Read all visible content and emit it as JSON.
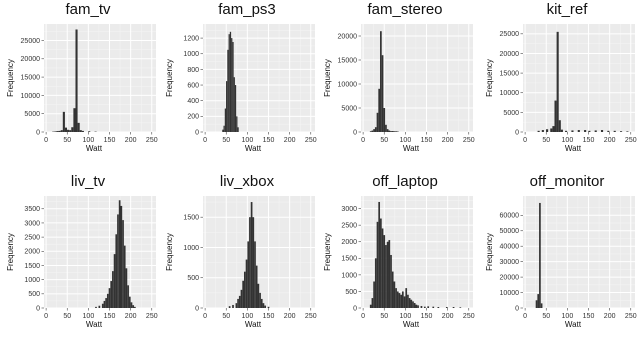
{
  "chart_data": [
    {
      "type": "bar",
      "title": "fam_tv",
      "xlabel": "Watt",
      "ylabel": "Frequency",
      "xlim": [
        -5,
        260
      ],
      "ylim": [
        0,
        29500
      ],
      "xticks": [
        0,
        50,
        100,
        150,
        200,
        250
      ],
      "yticks": [
        0,
        5000,
        10000,
        15000,
        20000,
        25000
      ],
      "binwidth": 5,
      "bins": [
        {
          "x": 17,
          "v": 100
        },
        {
          "x": 22,
          "v": 150
        },
        {
          "x": 27,
          "v": 250
        },
        {
          "x": 32,
          "v": 300
        },
        {
          "x": 37,
          "v": 500
        },
        {
          "x": 42,
          "v": 5500
        },
        {
          "x": 47,
          "v": 1200
        },
        {
          "x": 52,
          "v": 600
        },
        {
          "x": 57,
          "v": 500
        },
        {
          "x": 62,
          "v": 1300
        },
        {
          "x": 67,
          "v": 6500
        },
        {
          "x": 72,
          "v": 28000
        },
        {
          "x": 77,
          "v": 2500
        },
        {
          "x": 82,
          "v": 500
        },
        {
          "x": 87,
          "v": 300
        },
        {
          "x": 102,
          "v": 200
        },
        {
          "x": 117,
          "v": 100
        }
      ]
    },
    {
      "type": "bar",
      "title": "fam_ps3",
      "xlabel": "Watt",
      "ylabel": "Frequency",
      "xlim": [
        -5,
        260
      ],
      "ylim": [
        0,
        1380
      ],
      "xticks": [
        0,
        50,
        100,
        150,
        200,
        250
      ],
      "yticks": [
        0,
        200,
        400,
        600,
        800,
        1000,
        1200
      ],
      "binwidth": 3,
      "bins": [
        {
          "x": 42,
          "v": 30
        },
        {
          "x": 45,
          "v": 80
        },
        {
          "x": 48,
          "v": 300
        },
        {
          "x": 51,
          "v": 650
        },
        {
          "x": 54,
          "v": 1050
        },
        {
          "x": 57,
          "v": 1250
        },
        {
          "x": 60,
          "v": 1280
        },
        {
          "x": 63,
          "v": 1200
        },
        {
          "x": 66,
          "v": 1150
        },
        {
          "x": 69,
          "v": 700
        },
        {
          "x": 72,
          "v": 600
        },
        {
          "x": 75,
          "v": 200
        },
        {
          "x": 78,
          "v": 60
        }
      ]
    },
    {
      "type": "bar",
      "title": "fam_stereo",
      "xlabel": "Watt",
      "ylabel": "Frequency",
      "xlim": [
        -5,
        260
      ],
      "ylim": [
        0,
        22500
      ],
      "xticks": [
        0,
        50,
        100,
        150,
        200,
        250
      ],
      "yticks": [
        0,
        5000,
        10000,
        15000,
        20000
      ],
      "binwidth": 4,
      "bins": [
        {
          "x": 18,
          "v": 150
        },
        {
          "x": 22,
          "v": 300
        },
        {
          "x": 26,
          "v": 600
        },
        {
          "x": 30,
          "v": 1000
        },
        {
          "x": 34,
          "v": 4000
        },
        {
          "x": 38,
          "v": 9000
        },
        {
          "x": 42,
          "v": 21000
        },
        {
          "x": 46,
          "v": 16000
        },
        {
          "x": 50,
          "v": 5000
        },
        {
          "x": 54,
          "v": 1500
        },
        {
          "x": 58,
          "v": 600
        },
        {
          "x": 62,
          "v": 300
        },
        {
          "x": 66,
          "v": 200
        },
        {
          "x": 70,
          "v": 200
        },
        {
          "x": 74,
          "v": 150
        },
        {
          "x": 78,
          "v": 150
        },
        {
          "x": 82,
          "v": 100
        }
      ]
    },
    {
      "type": "bar",
      "title": "kit_ref",
      "xlabel": "Watt",
      "ylabel": "Frequency",
      "xlim": [
        -5,
        260
      ],
      "ylim": [
        0,
        27500
      ],
      "xticks": [
        0,
        50,
        100,
        150,
        200,
        250
      ],
      "yticks": [
        0,
        5000,
        10000,
        15000,
        20000,
        25000
      ],
      "binwidth": 5,
      "bins": [
        {
          "x": 32,
          "v": 300
        },
        {
          "x": 42,
          "v": 500
        },
        {
          "x": 52,
          "v": 700
        },
        {
          "x": 62,
          "v": 900
        },
        {
          "x": 67,
          "v": 1500
        },
        {
          "x": 72,
          "v": 8000
        },
        {
          "x": 77,
          "v": 25500
        },
        {
          "x": 82,
          "v": 3000
        },
        {
          "x": 87,
          "v": 600
        },
        {
          "x": 97,
          "v": 300
        },
        {
          "x": 112,
          "v": 400
        },
        {
          "x": 127,
          "v": 500
        },
        {
          "x": 142,
          "v": 500
        },
        {
          "x": 152,
          "v": 300
        },
        {
          "x": 167,
          "v": 400
        },
        {
          "x": 182,
          "v": 500
        },
        {
          "x": 197,
          "v": 300
        },
        {
          "x": 212,
          "v": 300
        },
        {
          "x": 227,
          "v": 200
        },
        {
          "x": 242,
          "v": 150
        }
      ]
    },
    {
      "type": "bar",
      "title": "liv_tv",
      "xlabel": "Watt",
      "ylabel": "Frequency",
      "xlim": [
        -5,
        260
      ],
      "ylim": [
        0,
        3950
      ],
      "xticks": [
        0,
        50,
        100,
        150,
        200,
        250
      ],
      "yticks": [
        0,
        500,
        1000,
        1500,
        2000,
        2500,
        3000,
        3500
      ],
      "binwidth": 4,
      "bins": [
        {
          "x": 118,
          "v": 40
        },
        {
          "x": 126,
          "v": 80
        },
        {
          "x": 134,
          "v": 150
        },
        {
          "x": 138,
          "v": 250
        },
        {
          "x": 142,
          "v": 350
        },
        {
          "x": 146,
          "v": 500
        },
        {
          "x": 150,
          "v": 700
        },
        {
          "x": 154,
          "v": 950
        },
        {
          "x": 158,
          "v": 1300
        },
        {
          "x": 162,
          "v": 1900
        },
        {
          "x": 166,
          "v": 2600
        },
        {
          "x": 170,
          "v": 3300
        },
        {
          "x": 174,
          "v": 3800
        },
        {
          "x": 178,
          "v": 3600
        },
        {
          "x": 182,
          "v": 3100
        },
        {
          "x": 186,
          "v": 2200
        },
        {
          "x": 190,
          "v": 1400
        },
        {
          "x": 194,
          "v": 800
        },
        {
          "x": 198,
          "v": 400
        },
        {
          "x": 202,
          "v": 200
        },
        {
          "x": 206,
          "v": 100
        },
        {
          "x": 210,
          "v": 40
        }
      ]
    },
    {
      "type": "bar",
      "title": "liv_xbox",
      "xlabel": "Watt",
      "ylabel": "Frequency",
      "xlim": [
        -5,
        260
      ],
      "ylim": [
        0,
        1850
      ],
      "xticks": [
        0,
        50,
        100,
        150,
        200,
        250
      ],
      "yticks": [
        0,
        500,
        1000,
        1500
      ],
      "binwidth": 4,
      "bins": [
        {
          "x": 58,
          "v": 30
        },
        {
          "x": 66,
          "v": 50
        },
        {
          "x": 74,
          "v": 80
        },
        {
          "x": 78,
          "v": 150
        },
        {
          "x": 82,
          "v": 200
        },
        {
          "x": 86,
          "v": 300
        },
        {
          "x": 90,
          "v": 450
        },
        {
          "x": 94,
          "v": 600
        },
        {
          "x": 98,
          "v": 800
        },
        {
          "x": 102,
          "v": 1100
        },
        {
          "x": 106,
          "v": 1500
        },
        {
          "x": 110,
          "v": 1750
        },
        {
          "x": 114,
          "v": 1500
        },
        {
          "x": 118,
          "v": 1100
        },
        {
          "x": 122,
          "v": 700
        },
        {
          "x": 126,
          "v": 400
        },
        {
          "x": 130,
          "v": 250
        },
        {
          "x": 134,
          "v": 150
        },
        {
          "x": 138,
          "v": 80
        },
        {
          "x": 142,
          "v": 40
        },
        {
          "x": 150,
          "v": 20
        }
      ]
    },
    {
      "type": "bar",
      "title": "off_laptop",
      "xlabel": "Watt",
      "ylabel": "Frequency",
      "xlim": [
        -5,
        260
      ],
      "ylim": [
        0,
        3380
      ],
      "xticks": [
        0,
        50,
        100,
        150,
        200,
        250
      ],
      "yticks": [
        0,
        500,
        1000,
        1500,
        2000,
        2500,
        3000
      ],
      "binwidth": 4,
      "bins": [
        {
          "x": 18,
          "v": 100
        },
        {
          "x": 22,
          "v": 300
        },
        {
          "x": 26,
          "v": 800
        },
        {
          "x": 30,
          "v": 1500
        },
        {
          "x": 34,
          "v": 2600
        },
        {
          "x": 38,
          "v": 3200
        },
        {
          "x": 42,
          "v": 2700
        },
        {
          "x": 46,
          "v": 2400
        },
        {
          "x": 50,
          "v": 2200
        },
        {
          "x": 54,
          "v": 1900
        },
        {
          "x": 58,
          "v": 2000
        },
        {
          "x": 62,
          "v": 2050
        },
        {
          "x": 66,
          "v": 1600
        },
        {
          "x": 70,
          "v": 1100
        },
        {
          "x": 74,
          "v": 800
        },
        {
          "x": 78,
          "v": 600
        },
        {
          "x": 82,
          "v": 500
        },
        {
          "x": 86,
          "v": 450
        },
        {
          "x": 90,
          "v": 400
        },
        {
          "x": 94,
          "v": 500
        },
        {
          "x": 98,
          "v": 350
        },
        {
          "x": 102,
          "v": 600
        },
        {
          "x": 106,
          "v": 400
        },
        {
          "x": 110,
          "v": 300
        },
        {
          "x": 114,
          "v": 250
        },
        {
          "x": 118,
          "v": 200
        },
        {
          "x": 122,
          "v": 150
        },
        {
          "x": 126,
          "v": 100
        },
        {
          "x": 130,
          "v": 80
        },
        {
          "x": 138,
          "v": 60
        },
        {
          "x": 146,
          "v": 40
        },
        {
          "x": 154,
          "v": 50
        },
        {
          "x": 166,
          "v": 40
        },
        {
          "x": 178,
          "v": 30
        },
        {
          "x": 198,
          "v": 30
        },
        {
          "x": 214,
          "v": 30
        },
        {
          "x": 230,
          "v": 20
        }
      ]
    },
    {
      "type": "bar",
      "title": "off_monitor",
      "xlabel": "Watt",
      "ylabel": "Frequency",
      "xlim": [
        -5,
        260
      ],
      "ylim": [
        0,
        72500
      ],
      "xticks": [
        0,
        50,
        100,
        150,
        200,
        250
      ],
      "yticks": [
        0,
        10000,
        20000,
        30000,
        40000,
        50000,
        60000
      ],
      "binwidth": 4,
      "bins": [
        {
          "x": 27,
          "v": 5000
        },
        {
          "x": 31,
          "v": 9000
        },
        {
          "x": 35,
          "v": 68000
        },
        {
          "x": 39,
          "v": 3000
        }
      ]
    }
  ]
}
